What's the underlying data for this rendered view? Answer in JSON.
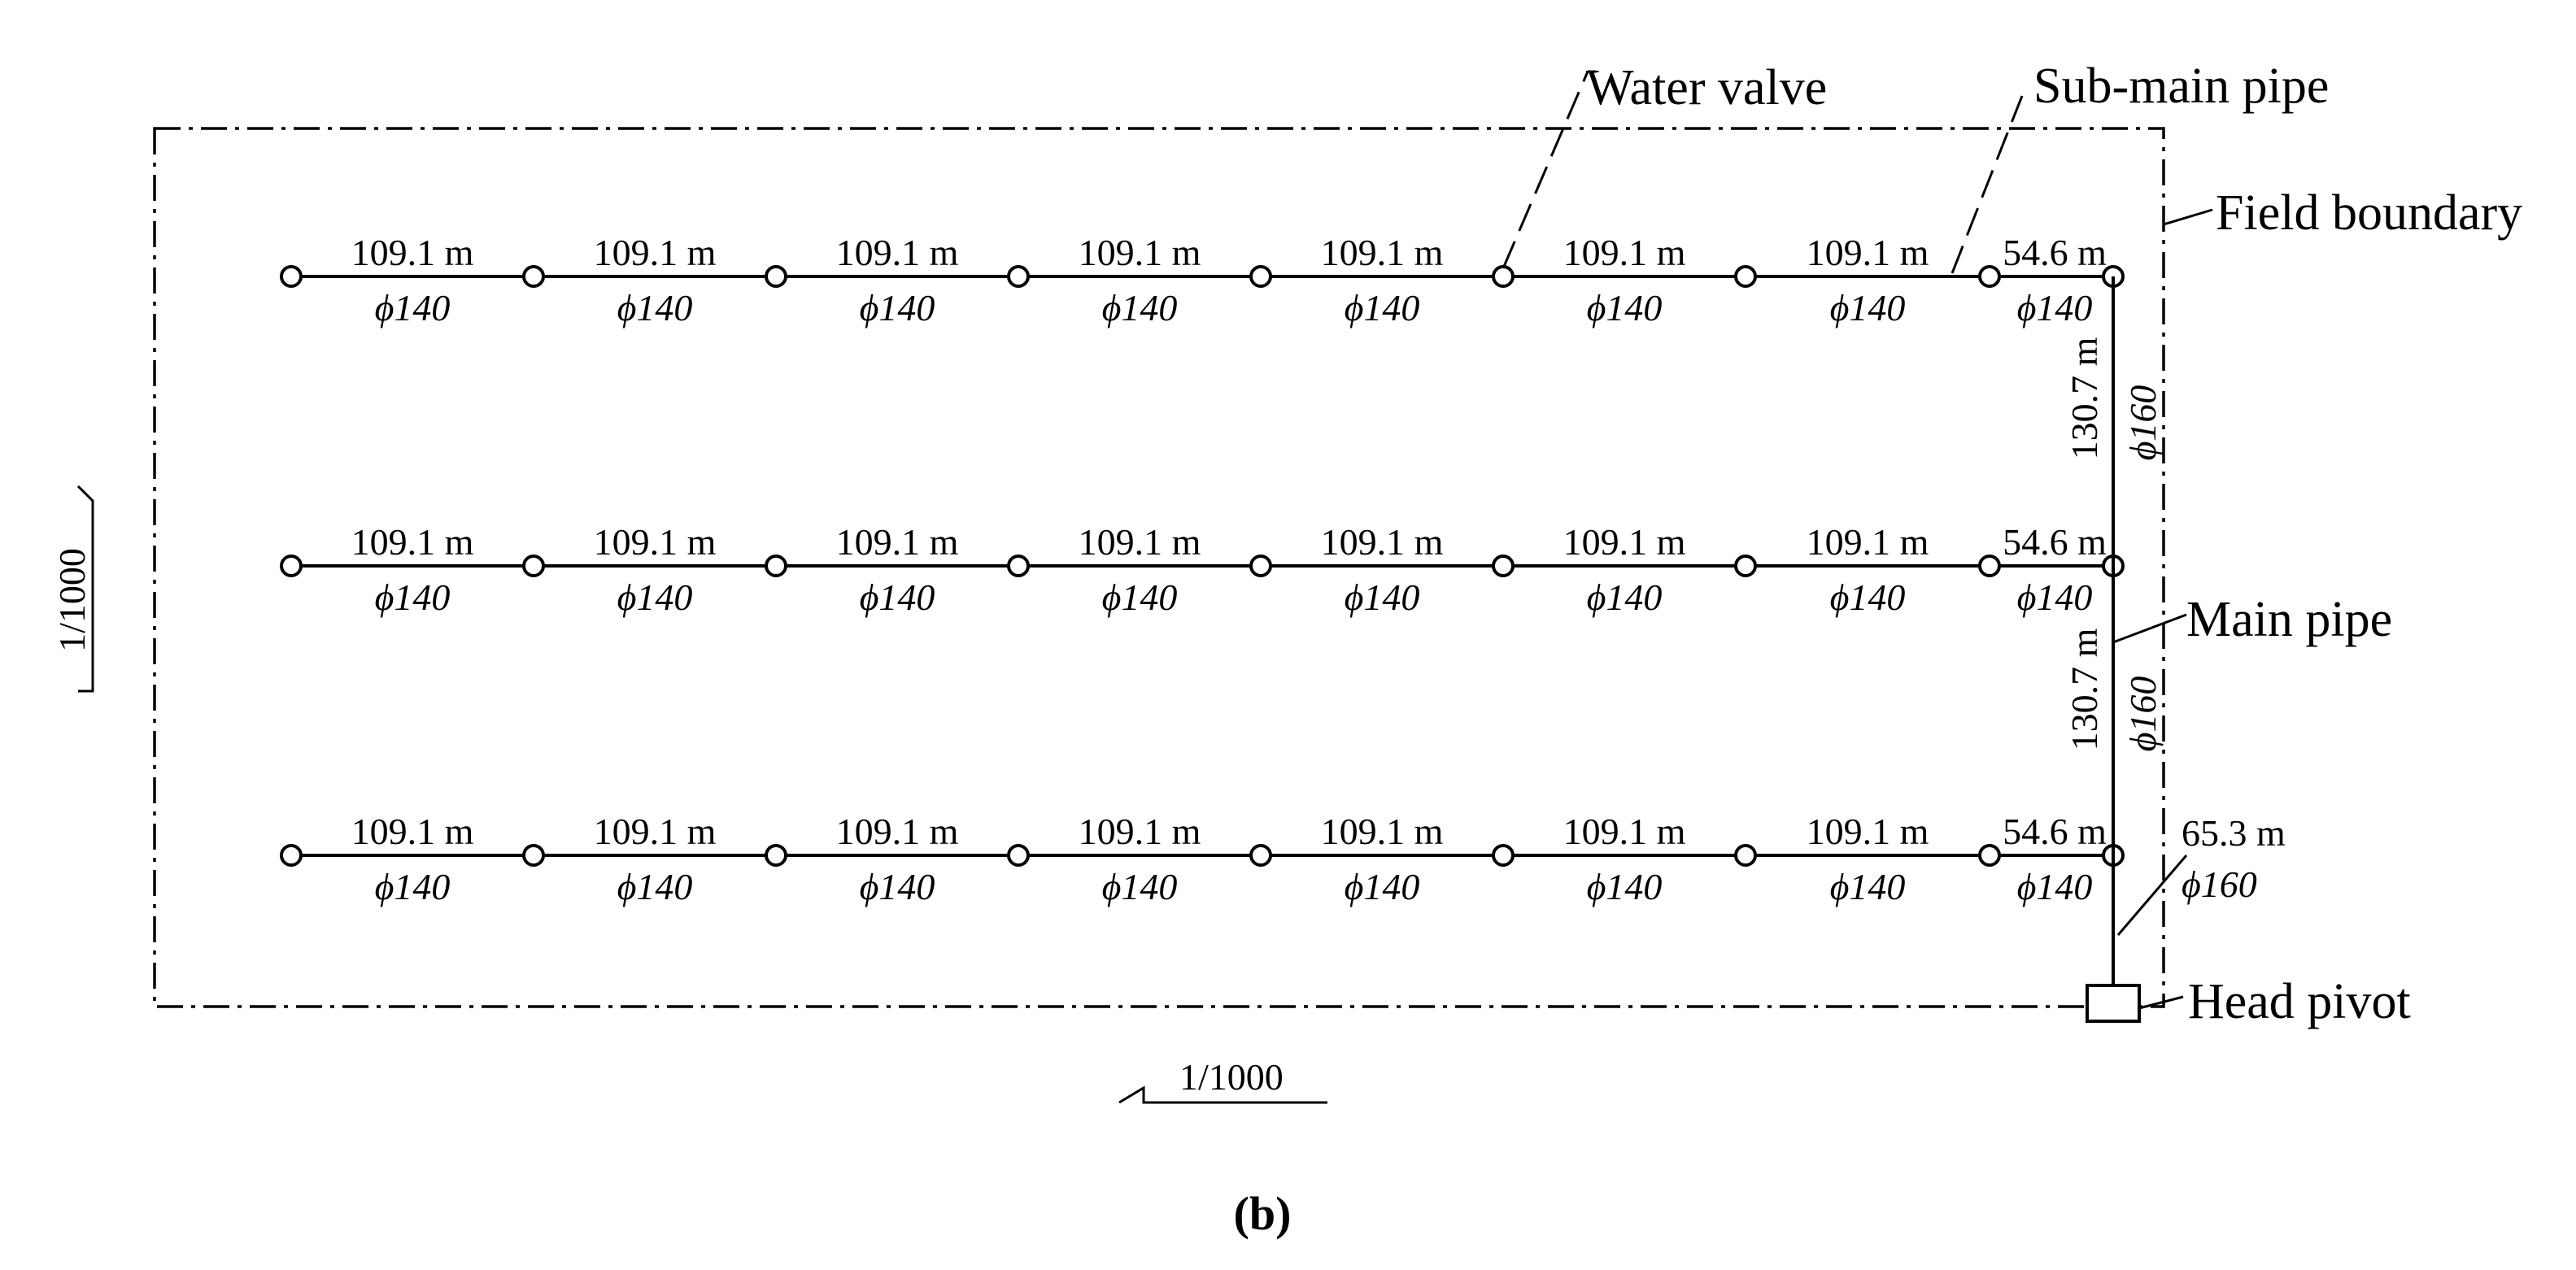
{
  "figure": {
    "caption": "(b)",
    "callouts": {
      "water_valve": "Water valve",
      "sub_main_pipe": "Sub-main pipe",
      "field_boundary": "Field boundary",
      "main_pipe": "Main pipe",
      "head_pivot": "Head pivot"
    },
    "scale_vertical": "1/1000",
    "scale_horizontal": "1/1000",
    "rows": [
      {
        "segments": [
          {
            "length": "109.1 m",
            "diameter": "ϕ140"
          },
          {
            "length": "109.1 m",
            "diameter": "ϕ140"
          },
          {
            "length": "109.1 m",
            "diameter": "ϕ140"
          },
          {
            "length": "109.1 m",
            "diameter": "ϕ140"
          },
          {
            "length": "109.1 m",
            "diameter": "ϕ140"
          },
          {
            "length": "109.1 m",
            "diameter": "ϕ140"
          },
          {
            "length": "109.1 m",
            "diameter": "ϕ140"
          },
          {
            "length": "54.6 m",
            "diameter": "ϕ140"
          }
        ]
      },
      {
        "segments": [
          {
            "length": "109.1 m",
            "diameter": "ϕ140"
          },
          {
            "length": "109.1 m",
            "diameter": "ϕ140"
          },
          {
            "length": "109.1 m",
            "diameter": "ϕ140"
          },
          {
            "length": "109.1 m",
            "diameter": "ϕ140"
          },
          {
            "length": "109.1 m",
            "diameter": "ϕ140"
          },
          {
            "length": "109.1 m",
            "diameter": "ϕ140"
          },
          {
            "length": "109.1 m",
            "diameter": "ϕ140"
          },
          {
            "length": "54.6 m",
            "diameter": "ϕ140"
          }
        ]
      },
      {
        "segments": [
          {
            "length": "109.1 m",
            "diameter": "ϕ140"
          },
          {
            "length": "109.1 m",
            "diameter": "ϕ140"
          },
          {
            "length": "109.1 m",
            "diameter": "ϕ140"
          },
          {
            "length": "109.1 m",
            "diameter": "ϕ140"
          },
          {
            "length": "109.1 m",
            "diameter": "ϕ140"
          },
          {
            "length": "109.1 m",
            "diameter": "ϕ140"
          },
          {
            "length": "109.1 m",
            "diameter": "ϕ140"
          },
          {
            "length": "54.6 m",
            "diameter": "ϕ140"
          }
        ]
      }
    ],
    "main_segments": [
      {
        "length": "130.7 m",
        "diameter": "ϕ160"
      },
      {
        "length": "130.7 m",
        "diameter": "ϕ160"
      }
    ],
    "head_segment": {
      "length": "65.3 m",
      "diameter": "ϕ160"
    }
  }
}
